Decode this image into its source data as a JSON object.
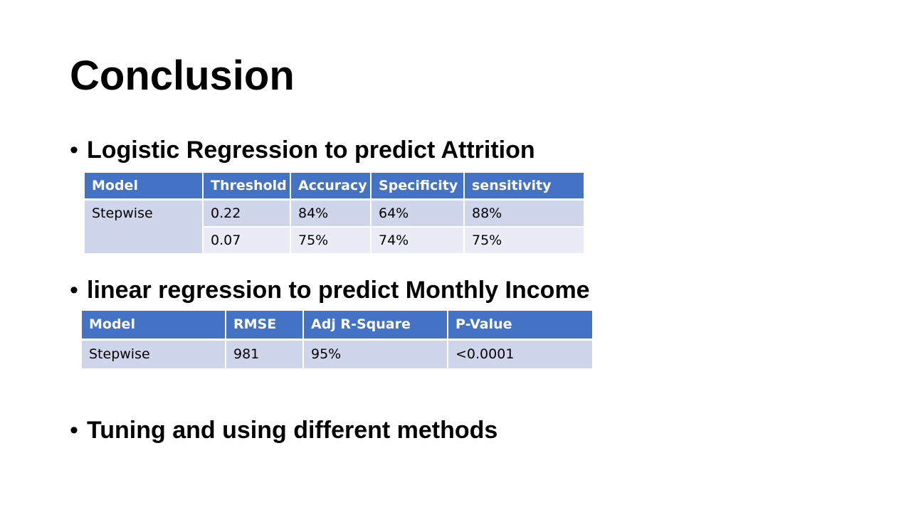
{
  "slide": {
    "title": "Conclusion",
    "bullets": [
      "Logistic Regression to predict Attrition",
      "linear regression to predict Monthly Income",
      "Tuning and using different methods"
    ],
    "bullet_glyph": "•",
    "colors": {
      "header_fill": "#4472c4",
      "row_dark": "#cfd5ea",
      "row_light": "#e9ebf5"
    },
    "logistic_table": {
      "headers": [
        "Model",
        "Threshold",
        "Accuracy",
        "Specificity",
        "sensitivity"
      ],
      "model": "Stepwise",
      "rows": [
        [
          "0.22",
          "84%",
          "64%",
          "88%"
        ],
        [
          "0.07",
          "75%",
          "74%",
          "75%"
        ]
      ]
    },
    "linear_table": {
      "headers": [
        "Model",
        "RMSE",
        "Adj R-Square",
        "P-Value"
      ],
      "rows": [
        [
          "Stepwise",
          "981",
          "95%",
          "<0.0001"
        ]
      ]
    }
  }
}
